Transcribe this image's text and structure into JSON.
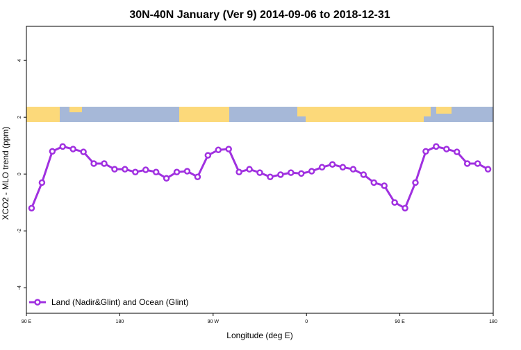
{
  "chart_data": {
    "type": "line",
    "title": "30N-40N January (Ver 9)   2014-09-06 to 2018-12-31",
    "x_label": "Longitude (deg E)",
    "y_label": "XCO2 - MLO trend (ppm)",
    "x": [
      95,
      105,
      115,
      125,
      135,
      145,
      155,
      165,
      175,
      185,
      195,
      205,
      215,
      225,
      235,
      245,
      255,
      265,
      275,
      285,
      295,
      305,
      315,
      325,
      335,
      345,
      355,
      365,
      375,
      385,
      395,
      405,
      415,
      425,
      435,
      445,
      455,
      465,
      475,
      485,
      495,
      505,
      515,
      525,
      535
    ],
    "series": [
      {
        "name": "Land (Nadir&Glint) and Ocean (Glint)",
        "color": "#a030e0",
        "values": [
          -1.2,
          -0.3,
          0.8,
          0.97,
          0.88,
          0.78,
          0.37,
          0.37,
          0.17,
          0.17,
          0.07,
          0.15,
          0.07,
          -0.15,
          0.07,
          0.1,
          -0.1,
          0.66,
          0.85,
          0.88,
          0.07,
          0.17,
          0.05,
          -0.1,
          -0.02,
          0.05,
          0.02,
          0.1,
          0.24,
          0.34,
          0.24,
          0.17,
          -0.02,
          -0.3,
          -0.41,
          -1.0,
          -1.2,
          -0.3,
          0.8,
          0.97,
          0.88,
          0.78,
          0.37,
          0.37,
          0.17
        ]
      }
    ],
    "xlim": [
      90,
      540
    ],
    "xticks": [
      {
        "value": 90,
        "label": "90 E"
      },
      180,
      {
        "value": 270,
        "label": "90 W"
      },
      {
        "value": 360,
        "label": "0"
      },
      {
        "value": 450,
        "label": "90 E"
      },
      {
        "value": 540,
        "label": "180"
      }
    ],
    "ylim": [
      -4.9,
      5.2
    ],
    "yticks": [
      -4,
      -2,
      0,
      2,
      4
    ],
    "legend": "bottom-left"
  }
}
